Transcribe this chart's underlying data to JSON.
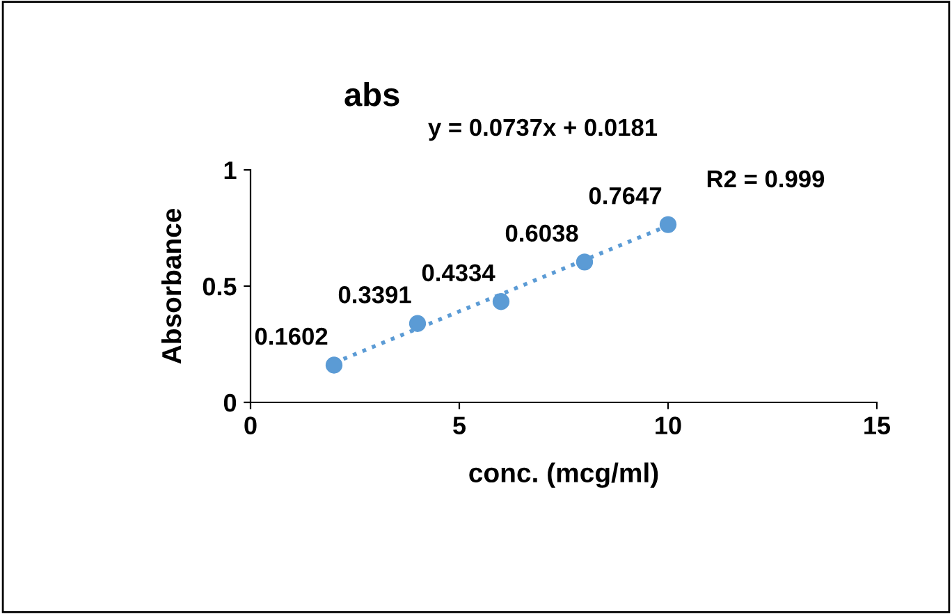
{
  "chart_data": {
    "type": "scatter",
    "title": "abs",
    "xlabel": "conc. (mcg/ml)",
    "ylabel": "Absorbance",
    "xlim": [
      0,
      15
    ],
    "xticks": [
      0,
      5,
      10,
      15
    ],
    "ylim": [
      0,
      1
    ],
    "yticks": [
      0,
      0.5,
      1
    ],
    "grid": false,
    "legend": false,
    "annotations": [
      "y = 0.0737x + 0.0181",
      "R2 = 0.999"
    ],
    "series": [
      {
        "color": "#5b9bd5",
        "marker": "circle",
        "x": [
          2,
          4,
          6,
          8,
          10
        ],
        "values": [
          0.1602,
          0.3391,
          0.4334,
          0.6038,
          0.7647
        ],
        "value_labels": [
          "0.1602",
          "0.3391",
          "0.4334",
          "0.6038",
          "0.7647"
        ]
      },
      {
        "type": "line",
        "color": "#5b9bd5",
        "line_style": "dotted",
        "marker": "none",
        "x": [
          2,
          10
        ],
        "values": [
          0.17,
          0.76
        ]
      }
    ]
  }
}
